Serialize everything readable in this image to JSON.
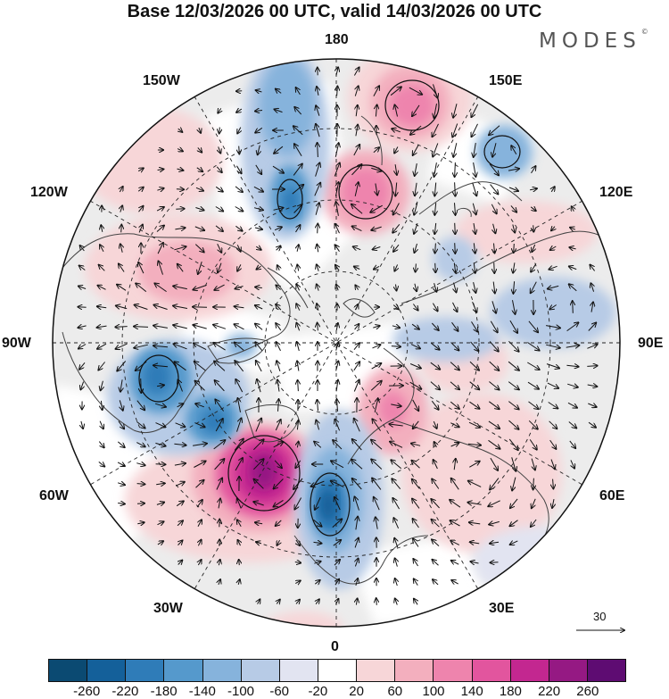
{
  "header": {
    "title": "Base 12/03/2026 00 UTC, valid 14/03/2026 00 UTC",
    "brand": "MODES",
    "brand_mark": "©"
  },
  "map": {
    "projection": "north polar stereographic",
    "longitude_labels": {
      "top": "180",
      "bottom": "0",
      "left": "90W",
      "right": "90E",
      "upper_left_1": "150W",
      "upper_left_2": "120W",
      "lower_left_1": "60W",
      "lower_left_2": "30W",
      "upper_right_1": "150E",
      "upper_right_2": "120E",
      "lower_right_1": "60E",
      "lower_right_2": "30E"
    },
    "reference_vector": "30",
    "anomaly_features": [
      {
        "sign": "negative",
        "value": -120,
        "color": "#5e98c7"
      },
      {
        "sign": "negative",
        "value": -180,
        "color": "#2e73ad"
      },
      {
        "sign": "positive",
        "value": 140,
        "color": "#e670a8"
      },
      {
        "sign": "positive",
        "value": 260,
        "color": "#8a1880"
      }
    ]
  },
  "colorbar": {
    "colors": [
      "#0b4a72",
      "#14609a",
      "#2f7cb8",
      "#5599cc",
      "#86b3dc",
      "#b7cbe6",
      "#e2e4f1",
      "#ffffff",
      "#f7d6d8",
      "#f3afbe",
      "#ee84ad",
      "#e2559e",
      "#c32790",
      "#951983",
      "#5e0c72"
    ],
    "ticks": [
      "-260",
      "-220",
      "-180",
      "-140",
      "-100",
      "-60",
      "-20",
      "20",
      "60",
      "100",
      "140",
      "180",
      "220",
      "260"
    ]
  }
}
